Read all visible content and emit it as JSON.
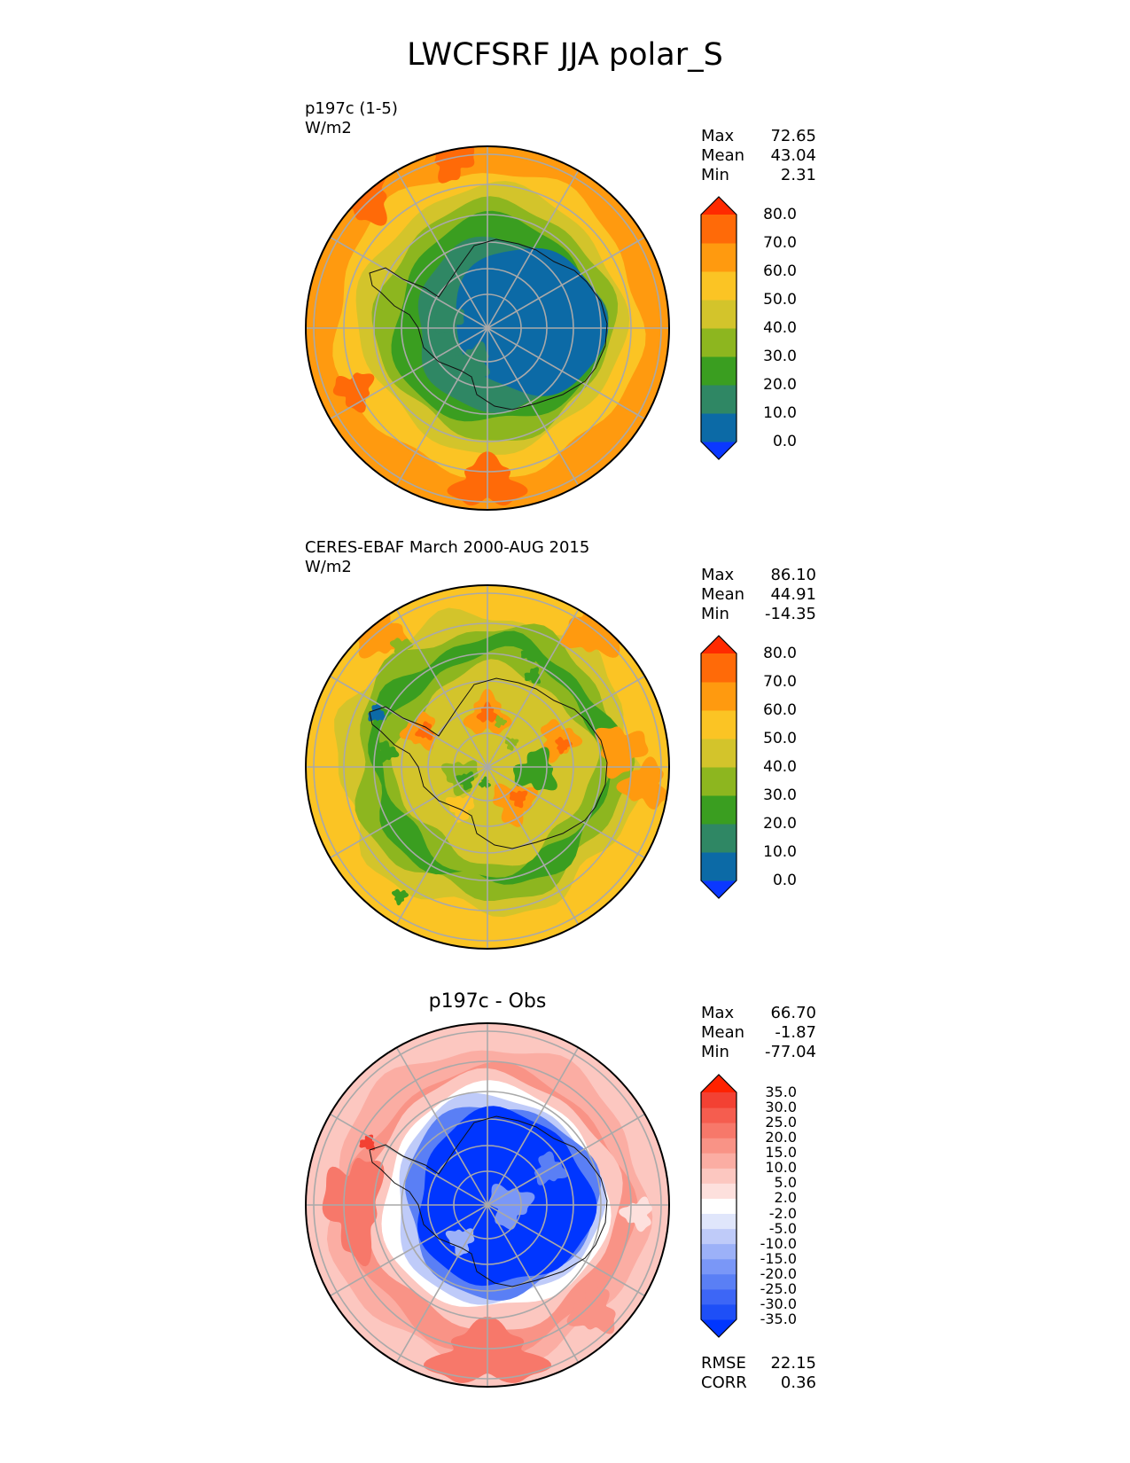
{
  "figure": {
    "title": "LWCFSRF JJA polar_S"
  },
  "panels": [
    {
      "id": "test",
      "title_line1": "p197c (1-5)",
      "title_line2": "W/m2",
      "stats": [
        {
          "label": "Max",
          "value": "72.65"
        },
        {
          "label": "Mean",
          "value": "43.04"
        },
        {
          "label": "Min",
          "value": "2.31"
        }
      ]
    },
    {
      "id": "ref",
      "title_line1": "CERES-EBAF March 2000-AUG 2015",
      "title_line2": "W/m2",
      "stats": [
        {
          "label": "Max",
          "value": "86.10"
        },
        {
          "label": "Mean",
          "value": "44.91"
        },
        {
          "label": "Min",
          "value": "-14.35"
        }
      ]
    },
    {
      "id": "diff",
      "title_line1": "p197c - Obs",
      "stats": [
        {
          "label": "Max",
          "value": "66.70"
        },
        {
          "label": "Mean",
          "value": "-1.87"
        },
        {
          "label": "Min",
          "value": "-77.04"
        }
      ],
      "metrics": [
        {
          "label": "RMSE",
          "value": "22.15"
        },
        {
          "label": "CORR",
          "value": "0.36"
        }
      ]
    }
  ],
  "chart_data": [
    {
      "type": "heatmap",
      "title": "p197c (1-5)",
      "units": "W/m2",
      "projection": "south polar stereographic",
      "colorbar": {
        "levels": [
          0,
          10,
          20,
          30,
          40,
          50,
          60,
          70,
          80
        ],
        "tick_labels": [
          "80.0",
          "70.0",
          "60.0",
          "50.0",
          "40.0",
          "30.0",
          "20.0",
          "10.0",
          "0.0"
        ],
        "colors": [
          "#0b38ff",
          "#0c6aa6",
          "#2f8764",
          "#3a9e20",
          "#8db61f",
          "#d3c42b",
          "#fbc424",
          "#ff9a0f",
          "#ff6a08",
          "#ff2a00"
        ],
        "extend": "both"
      },
      "zones": [
        {
          "region": "outer ocean",
          "approx_value": 65
        },
        {
          "region": "sea ice margin",
          "approx_value": 45
        },
        {
          "region": "coastal Antarctica",
          "approx_value": 25
        },
        {
          "region": "east antarctic plateau",
          "approx_value": 5
        }
      ]
    },
    {
      "type": "heatmap",
      "title": "CERES-EBAF March 2000-AUG 2015",
      "units": "W/m2",
      "projection": "south polar stereographic",
      "colorbar": {
        "levels": [
          0,
          10,
          20,
          30,
          40,
          50,
          60,
          70,
          80
        ],
        "tick_labels": [
          "80.0",
          "70.0",
          "60.0",
          "50.0",
          "40.0",
          "30.0",
          "20.0",
          "10.0",
          "0.0"
        ],
        "colors": [
          "#0b38ff",
          "#0c6aa6",
          "#2f8764",
          "#3a9e20",
          "#8db61f",
          "#d3c42b",
          "#fbc424",
          "#ff9a0f",
          "#ff6a08",
          "#ff2a00"
        ],
        "extend": "both"
      },
      "zones": [
        {
          "region": "outer ocean",
          "approx_value": 55
        },
        {
          "region": "southern ocean ring",
          "approx_value": 35
        },
        {
          "region": "antarctic interior",
          "approx_value": 60
        }
      ]
    },
    {
      "type": "heatmap",
      "title": "p197c - Obs",
      "units": "W/m2",
      "projection": "south polar stereographic",
      "colorbar": {
        "levels": [
          -35,
          -30,
          -25,
          -20,
          -15,
          -10,
          -5,
          -2,
          2,
          5,
          10,
          15,
          20,
          25,
          30,
          35
        ],
        "tick_labels": [
          "35.0",
          "30.0",
          "25.0",
          "20.0",
          "15.0",
          "10.0",
          "5.0",
          "2.0",
          "-2.0",
          "-5.0",
          "-10.0",
          "-15.0",
          "-20.0",
          "-25.0",
          "-30.0",
          "-35.0"
        ],
        "colors": [
          "#0036ff",
          "#1e4ff7",
          "#3d66f6",
          "#5a7ff5",
          "#7a97f7",
          "#9cb1f8",
          "#bfcbf9",
          "#e0e6fb",
          "#ffffff",
          "#fde0dd",
          "#fcc7c0",
          "#fbada3",
          "#f99386",
          "#f7786a",
          "#f55d4f",
          "#f34133",
          "#ff2200"
        ],
        "extend": "both"
      },
      "zones": [
        {
          "region": "antarctic continent",
          "approx_value": -35
        },
        {
          "region": "coastal ring",
          "approx_value": 0
        },
        {
          "region": "southern ocean",
          "approx_value": 20
        }
      ]
    }
  ]
}
